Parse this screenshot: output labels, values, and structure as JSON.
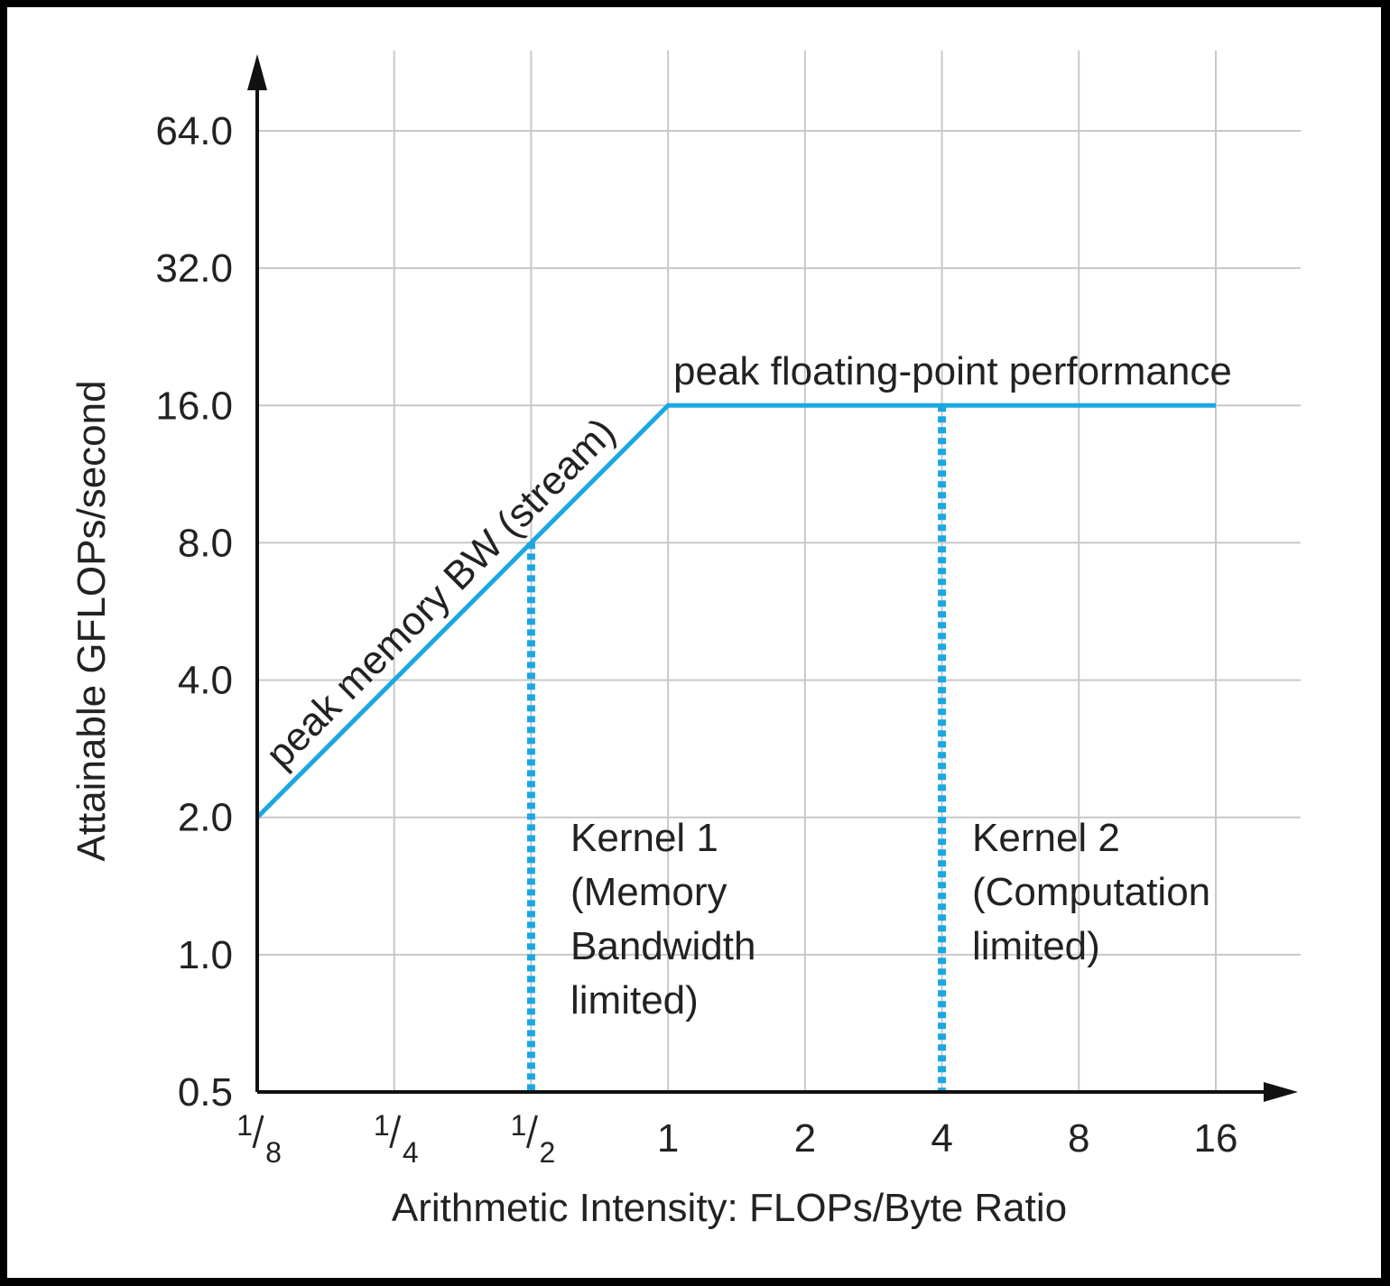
{
  "chart_data": {
    "type": "line",
    "title": "",
    "xlabel": "Arithmetic Intensity: FLOPs/Byte Ratio",
    "ylabel": "Attainable GFLOPs/second",
    "x_scale": "log2",
    "y_scale": "log2",
    "xlim": [
      0.125,
      16
    ],
    "ylim": [
      0.5,
      64
    ],
    "x_ticks": [
      {
        "value": 0.125,
        "num": "1",
        "den": "8"
      },
      {
        "value": 0.25,
        "num": "1",
        "den": "4"
      },
      {
        "value": 0.5,
        "num": "1",
        "den": "2"
      },
      {
        "value": 1,
        "label": "1"
      },
      {
        "value": 2,
        "label": "2"
      },
      {
        "value": 4,
        "label": "4"
      },
      {
        "value": 8,
        "label": "8"
      },
      {
        "value": 16,
        "label": "16"
      }
    ],
    "y_ticks": [
      {
        "value": 0.5,
        "label": "0.5"
      },
      {
        "value": 1,
        "label": "1.0"
      },
      {
        "value": 2,
        "label": "2.0"
      },
      {
        "value": 4,
        "label": "4.0"
      },
      {
        "value": 8,
        "label": "8.0"
      },
      {
        "value": 16,
        "label": "16.0"
      },
      {
        "value": 32,
        "label": "32.0"
      },
      {
        "value": 64,
        "label": "64.0"
      }
    ],
    "grid": true,
    "series": [
      {
        "x": [
          0.125,
          1,
          16
        ],
        "y": [
          2,
          16,
          16
        ],
        "color": "#1ba7e1",
        "style": "solid"
      }
    ],
    "reference_lines": [
      {
        "x": 0.5,
        "y_from": 0.5,
        "y_to": 8,
        "color": "#1ba7e1",
        "style": "dotted"
      },
      {
        "x": 4,
        "y_from": 0.5,
        "y_to": 16,
        "color": "#1ba7e1",
        "style": "dotted"
      }
    ],
    "annotations": {
      "memory_bw": "peak memory BW (stream)",
      "peak_fp": "peak floating-point performance",
      "kernel1": [
        "Kernel 1",
        "(Memory",
        "Bandwidth",
        "limited)"
      ],
      "kernel2": [
        "Kernel 2",
        "(Computation",
        "limited)"
      ]
    }
  }
}
